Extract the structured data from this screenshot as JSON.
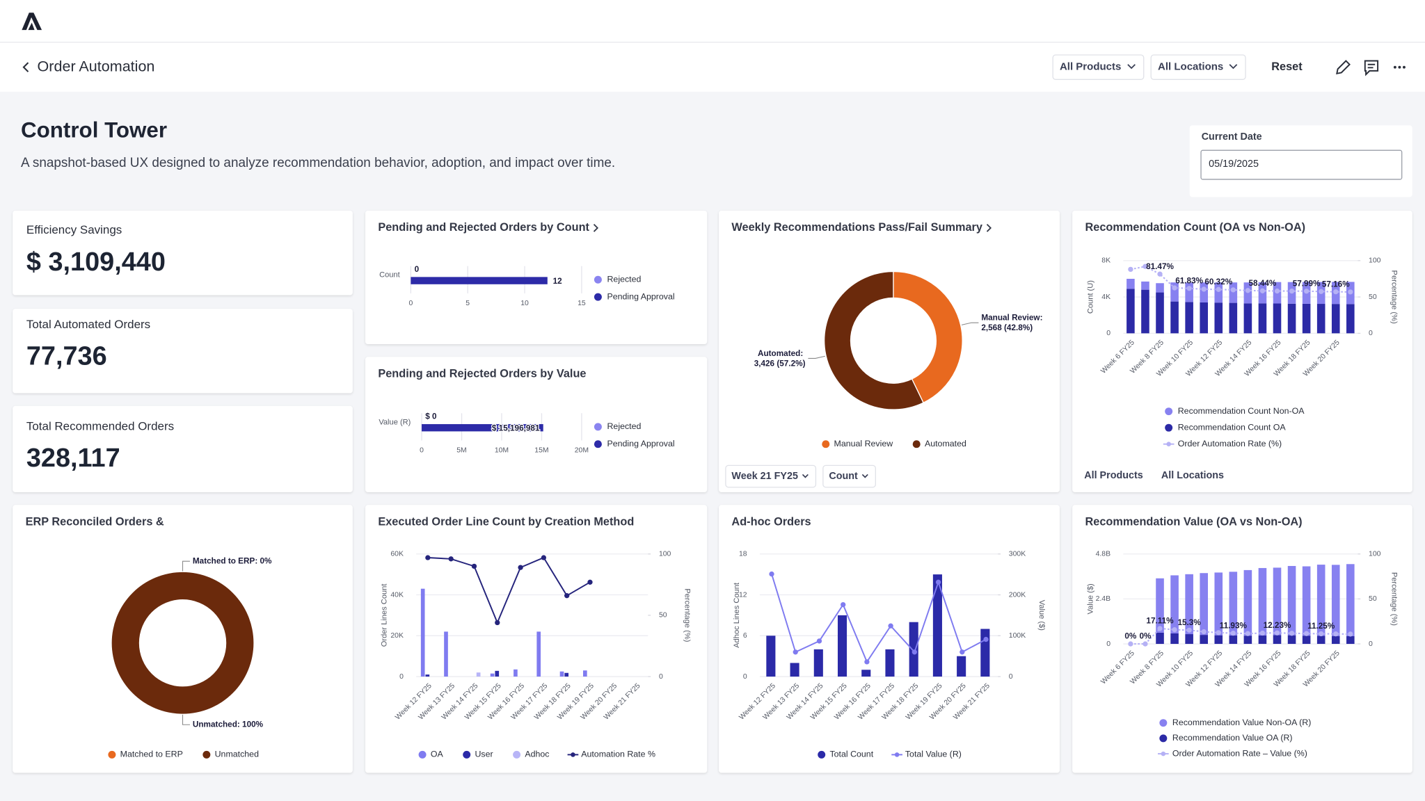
{
  "header": {
    "back_title": "Order Automation",
    "filters": [
      "All Products",
      "All Locations"
    ],
    "reset": "Reset"
  },
  "page": {
    "title": "Control Tower",
    "subtitle": "A snapshot-based UX designed to analyze recommendation behavior, adoption, and impact over time.",
    "date_label": "Current Date",
    "date_value": "05/19/2025"
  },
  "kpis": [
    {
      "label": "Efficiency Savings",
      "value": "$ 3,109,440"
    },
    {
      "label": "Total Automated Orders",
      "value": "77,736"
    },
    {
      "label": "Total Recommended Orders",
      "value": "328,117"
    }
  ],
  "chart_data": [
    {
      "type": "hbar",
      "title": "Pending and Rejected Orders by Count",
      "categories": [
        "Count"
      ],
      "xlim": [
        0,
        15
      ],
      "xticks": [
        0,
        5,
        10,
        15
      ],
      "series": [
        {
          "name": "Rejected",
          "color": "#8a84f0",
          "values": [
            0
          ]
        },
        {
          "name": "Pending Approval",
          "color": "#2d2ba8",
          "values": [
            12
          ]
        }
      ]
    },
    {
      "type": "hbar",
      "title": "Pending and Rejected Orders by Value",
      "categories": [
        "Value (R)"
      ],
      "xlim": [
        0,
        20000000
      ],
      "xticks": [
        0,
        {
          "value": 5000000,
          "label": "5M"
        },
        {
          "value": 10000000,
          "label": "10M"
        },
        {
          "value": 15000000,
          "label": "15M"
        },
        {
          "value": 20000000,
          "label": "20M"
        }
      ],
      "series": [
        {
          "name": "Rejected",
          "color": "#8a84f0",
          "values": [
            0
          ],
          "value_labels": [
            "$ 0"
          ]
        },
        {
          "name": "Pending Approval",
          "color": "#2d2ba8",
          "values": [
            15196981
          ],
          "value_labels": [
            "$ 15,196,981"
          ]
        }
      ]
    },
    {
      "type": "donut",
      "title": "Weekly Recommendations Pass/Fail Summary",
      "categories": [
        "Manual Review",
        "Automated"
      ],
      "values": [
        2568,
        3426
      ],
      "value_labels": [
        "Manual Review: 2,568 (42.8%)",
        "Automated: 3,426 (57.2%)"
      ],
      "colors": [
        "#e8691f",
        "#6b2a0c"
      ],
      "controls": [
        "Week 21 FY25",
        "Count"
      ]
    },
    {
      "type": "combo",
      "title": "Recommendation Count (OA vs Non-OA)",
      "stacked": true,
      "grid": true,
      "y_label": "Count (U)",
      "y2_label": "Percentage (%)",
      "categories": [
        "Week 6 FY25",
        null,
        "Week 8 FY25",
        null,
        "Week 10 FY25",
        null,
        "Week 12 FY25",
        null,
        "Week 14 FY25",
        null,
        "Week 16 FY25",
        null,
        "Week 18 FY25",
        null,
        "Week 20 FY25",
        null
      ],
      "ylim": [
        0,
        8000
      ],
      "yticks": [
        0,
        {
          "value": 4000,
          "label": "4K"
        },
        {
          "value": 8000,
          "label": "8K"
        }
      ],
      "y2lim": [
        0,
        100
      ],
      "y2ticks": [
        0,
        50,
        100
      ],
      "series": [
        {
          "name": "Recommendation Count Non-OA",
          "kind": "bar",
          "color": "#8781f0",
          "values": [
            1100,
            900,
            1020,
            2100,
            2130,
            2200,
            2220,
            2250,
            2300,
            2320,
            2360,
            2380,
            2400,
            2410,
            2430,
            2440
          ]
        },
        {
          "name": "Recommendation Count OA",
          "kind": "bar",
          "color": "#2c2aa6",
          "values": [
            4900,
            4800,
            4500,
            3500,
            3450,
            3400,
            3380,
            3350,
            3300,
            3300,
            3280,
            3260,
            3250,
            3240,
            3230,
            3220
          ]
        },
        {
          "name": "Order Automation Rate (%)",
          "kind": "line",
          "axis": "y2",
          "line_style": "dotted",
          "color": "#b5b1f5",
          "values": [
            88,
            92,
            81.47,
            62.5,
            61.83,
            60.7,
            60.32,
            59.8,
            58.9,
            58.44,
            58.2,
            58.1,
            57.99,
            57.5,
            57.16,
            56.9
          ],
          "value_labels": [
            null,
            null,
            "81.47%",
            null,
            "61.83%",
            null,
            "60.32%",
            null,
            null,
            "58.44%",
            null,
            null,
            "57.99%",
            null,
            "57.16%",
            null
          ]
        }
      ],
      "footer": [
        "All Products",
        "All Locations"
      ]
    },
    {
      "type": "donut",
      "title": "ERP Reconciled Orders &",
      "categories": [
        "Matched to ERP",
        "Unmatched"
      ],
      "values": [
        0,
        100
      ],
      "value_labels": [
        "Matched to ERP: 0%",
        "Unmatched: 100%"
      ],
      "colors": [
        "#e8691f",
        "#6b2a0c"
      ]
    },
    {
      "type": "combo",
      "title": "Executed Order Line Count by Creation Method",
      "stacked": false,
      "grid": true,
      "y_label": "Order Lines Count",
      "y2_label": "Percentage (%)",
      "categories": [
        "Week 12 FY25",
        "Week 13 FY25",
        "Week 14 FY25",
        "Week 15 FY25",
        "Week 16 FY25",
        "Week 17 FY25",
        "Week 18 FY25",
        "Week 19 FY25",
        "Week 20 FY25",
        "Week 21 FY25"
      ],
      "ylim": [
        0,
        60000
      ],
      "yticks": [
        0,
        {
          "value": 20000,
          "label": "20K"
        },
        {
          "value": 40000,
          "label": "40K"
        },
        {
          "value": 60000,
          "label": "60K"
        }
      ],
      "y2lim": [
        0,
        100
      ],
      "y2ticks": [
        0,
        50,
        100
      ],
      "series": [
        {
          "name": "OA",
          "kind": "bar",
          "color": "#7f7bf0",
          "values": [
            43000,
            22000,
            0,
            1500,
            3500,
            22000,
            2500,
            3000,
            0,
            0
          ]
        },
        {
          "name": "User",
          "kind": "bar",
          "color": "#2b2aa8",
          "values": [
            1000,
            0,
            0,
            2800,
            0,
            0,
            1800,
            0,
            0,
            0
          ]
        },
        {
          "name": "Adhoc",
          "kind": "bar",
          "color": "#b8b5f7",
          "values": [
            0,
            0,
            2000,
            0,
            0,
            0,
            0,
            0,
            0,
            0
          ]
        },
        {
          "name": "Automation Rate %",
          "kind": "line",
          "axis": "y2",
          "line_style": "solid",
          "color": "#25247c",
          "values": [
            97,
            96,
            90,
            44,
            89,
            97,
            66,
            77,
            null,
            null
          ]
        }
      ]
    },
    {
      "type": "combo",
      "title": "Ad-hoc Orders",
      "stacked": false,
      "grid": true,
      "y_label": "Adhoc Lines Count",
      "y2_label": "Value ($)",
      "categories": [
        "Week 12 FY25",
        "Week 13 FY25",
        "Week 14 FY25",
        "Week 15 FY25",
        "Week 16 FY25",
        "Week 17 FY25",
        "Week 18 FY25",
        "Week 19 FY25",
        "Week 20 FY25",
        "Week 21 FY25"
      ],
      "ylim": [
        0,
        18
      ],
      "yticks": [
        0,
        6,
        12,
        18
      ],
      "y2lim": [
        0,
        300000
      ],
      "y2ticks": [
        0,
        {
          "value": 100000,
          "label": "100K"
        },
        {
          "value": 200000,
          "label": "200K"
        },
        {
          "value": 300000,
          "label": "300K"
        }
      ],
      "series": [
        {
          "name": "Total Count",
          "kind": "bar",
          "color": "#2b2aa8",
          "values": [
            6,
            2,
            4,
            9,
            1,
            4,
            8,
            15,
            3,
            7
          ]
        },
        {
          "name": "Total Value (R)",
          "kind": "line",
          "axis": "y2",
          "line_style": "solid",
          "color": "#7f7bf0",
          "values": [
            251000,
            60000,
            87000,
            176000,
            36000,
            124000,
            60000,
            231000,
            60000,
            91000
          ]
        }
      ]
    },
    {
      "type": "combo",
      "title": "Recommendation Value (OA vs Non-OA)",
      "stacked": true,
      "grid": true,
      "y_label": "Value ($)",
      "y2_label": "Percentage (%)",
      "categories": [
        "Week 6 FY25",
        null,
        "Week 8 FY25",
        null,
        "Week 10 FY25",
        null,
        "Week 12 FY25",
        null,
        "Week 14 FY25",
        null,
        "Week 16 FY25",
        null,
        "Week 18 FY25",
        null,
        "Week 20 FY25",
        null
      ],
      "ylim": [
        0,
        4800000000
      ],
      "yticks": [
        0,
        {
          "value": 2400000000,
          "label": "2.4B"
        },
        {
          "value": 4800000000,
          "label": "4.8B"
        }
      ],
      "y2lim": [
        0,
        100
      ],
      "y2ticks": [
        0,
        50,
        100
      ],
      "series": [
        {
          "name": "Recommendation Value Non-OA (R)",
          "kind": "bar",
          "color": "#8781f0",
          "values": [
            0,
            0,
            2900000000,
            3100000000,
            3200000000,
            3300000000,
            3350000000,
            3400000000,
            3500000000,
            3600000000,
            3600000000,
            3700000000,
            3700000000,
            3800000000,
            3800000000,
            3850000000
          ]
        },
        {
          "name": "Recommendation Value OA (R)",
          "kind": "bar",
          "color": "#2c2aa6",
          "values": [
            0,
            0,
            600000000,
            560000000,
            520000000,
            480000000,
            460000000,
            450000000,
            440000000,
            450000000,
            470000000,
            460000000,
            440000000,
            430000000,
            420000000,
            410000000
          ]
        },
        {
          "name": "Order Automation Rate – Value (%)",
          "kind": "line",
          "axis": "y2",
          "line_style": "dotted",
          "color": "#b5b1f5",
          "values": [
            0,
            0,
            17.11,
            15.8,
            15.3,
            13.5,
            12.5,
            11.93,
            11.5,
            12.0,
            12.23,
            11.8,
            11.5,
            11.25,
            11.1,
            10.9
          ],
          "value_labels": [
            "0%",
            "0%",
            "17.11%",
            null,
            "15.3%",
            null,
            null,
            "11.93%",
            null,
            null,
            "12.23%",
            null,
            null,
            "11.25%",
            null,
            null
          ]
        }
      ]
    }
  ]
}
